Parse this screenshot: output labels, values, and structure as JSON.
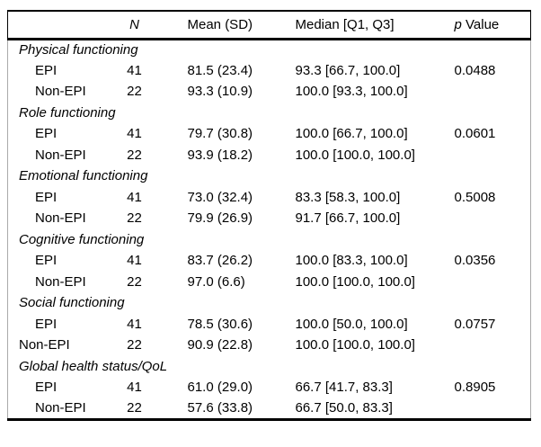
{
  "colors": {
    "text": "#000000",
    "rule": "#000000",
    "side_border": "#aaaaaa",
    "background": "#ffffff"
  },
  "table": {
    "headers": {
      "label": "",
      "n_italic": "N",
      "mean_sd": "Mean (SD)",
      "median": "Median [Q1, Q3]",
      "p_italic": "p",
      "p_rest": " Value"
    },
    "groups": [
      {
        "label": "Physical functioning",
        "rows": [
          {
            "name": "EPI",
            "n": "41",
            "mean_sd": "81.5 (23.4)",
            "median": "93.3 [66.7, 100.0]",
            "p": "0.0488"
          },
          {
            "name": "Non-EPI",
            "n": "22",
            "mean_sd": "93.3 (10.9)",
            "median": "100.0 [93.3, 100.0]",
            "p": ""
          }
        ]
      },
      {
        "label": "Role functioning",
        "rows": [
          {
            "name": "EPI",
            "n": "41",
            "mean_sd": "79.7 (30.8)",
            "median": "100.0 [66.7, 100.0]",
            "p": "0.0601"
          },
          {
            "name": "Non-EPI",
            "n": "22",
            "mean_sd": "93.9 (18.2)",
            "median": "100.0 [100.0, 100.0]",
            "p": ""
          }
        ]
      },
      {
        "label": "Emotional functioning",
        "rows": [
          {
            "name": "EPI",
            "n": "41",
            "mean_sd": "73.0 (32.4)",
            "median": "83.3 [58.3, 100.0]",
            "p": "0.5008"
          },
          {
            "name": "Non-EPI",
            "n": "22",
            "mean_sd": "79.9 (26.9)",
            "median": "91.7 [66.7, 100.0]",
            "p": ""
          }
        ]
      },
      {
        "label": "Cognitive functioning",
        "rows": [
          {
            "name": "EPI",
            "n": "41",
            "mean_sd": "83.7 (26.2)",
            "median": "100.0 [83.3, 100.0]",
            "p": "0.0356"
          },
          {
            "name": "Non-EPI",
            "n": "22",
            "mean_sd": "97.0 (6.6)",
            "median": "100.0 [100.0, 100.0]",
            "p": ""
          }
        ]
      },
      {
        "label": "Social functioning",
        "rows": [
          {
            "name": "EPI",
            "n": "41",
            "mean_sd": "78.5 (30.6)",
            "median": "100.0 [50.0, 100.0]",
            "p": "0.0757"
          },
          {
            "name": "Non-EPI",
            "n": "22",
            "mean_sd": "90.9 (22.8)",
            "median": "100.0 [100.0, 100.0]",
            "p": ""
          }
        ]
      },
      {
        "label": "Global health status/QoL",
        "rows": [
          {
            "name": "EPI",
            "n": "41",
            "mean_sd": "61.0 (29.0)",
            "median": "66.7 [41.7, 83.3]",
            "p": "0.8905"
          },
          {
            "name": "Non-EPI",
            "n": "22",
            "mean_sd": "57.6 (33.8)",
            "median": "66.7 [50.0, 83.3]",
            "p": ""
          }
        ]
      }
    ]
  }
}
